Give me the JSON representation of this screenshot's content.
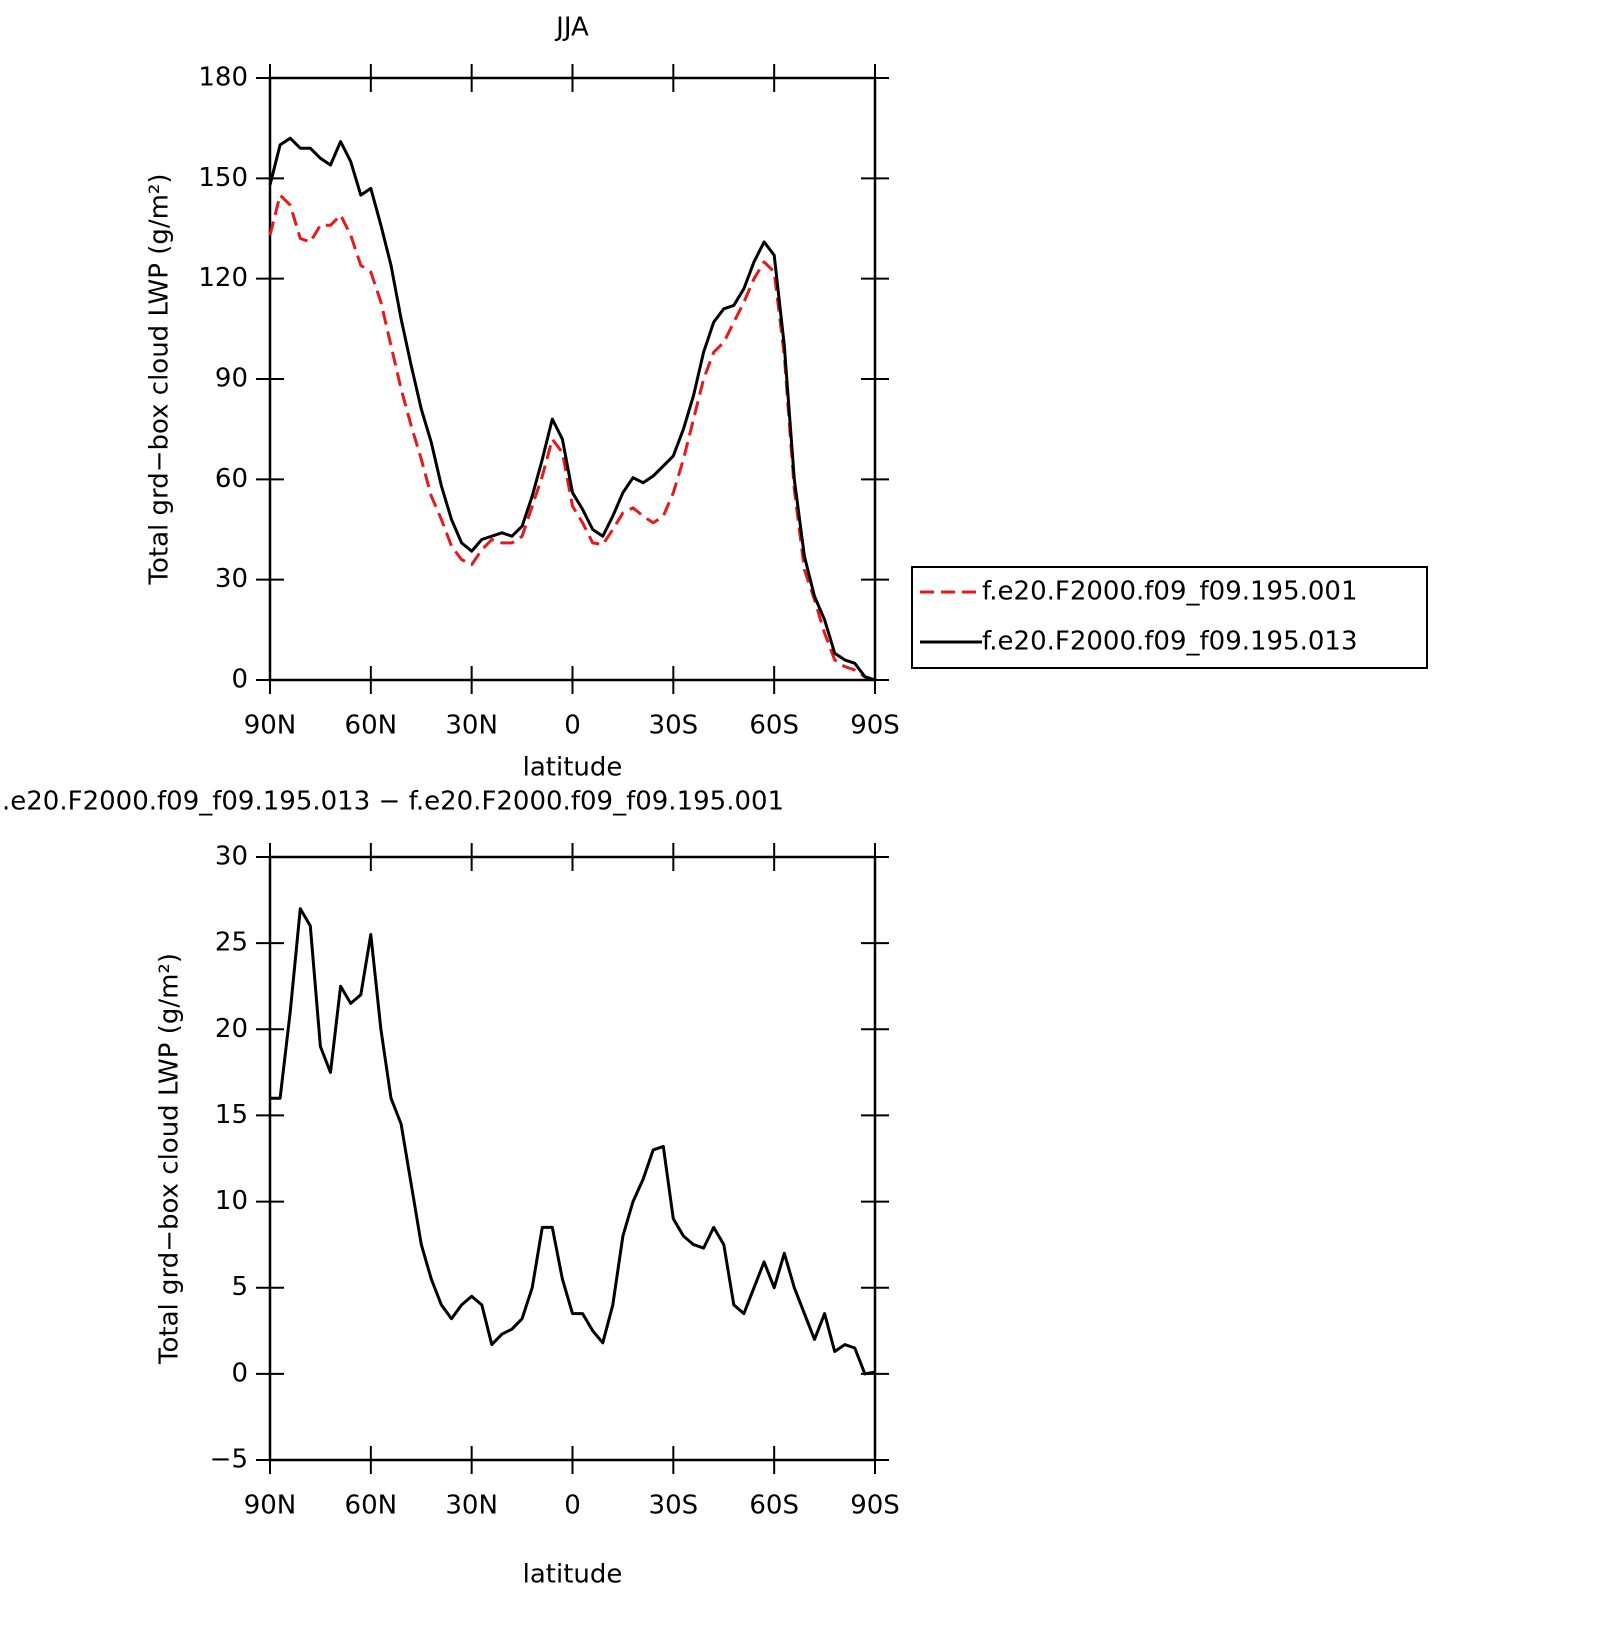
{
  "chart_data": [
    {
      "type": "line",
      "title": "JJA",
      "xlabel": "latitude",
      "ylabel": "Total grd−box cloud LWP (g/m²)",
      "x": [
        90,
        87,
        84,
        81,
        78,
        75,
        72,
        69,
        66,
        63,
        60,
        57,
        54,
        51,
        48,
        45,
        42,
        39,
        36,
        33,
        30,
        27,
        24,
        21,
        18,
        15,
        12,
        9,
        6,
        3,
        0,
        -3,
        -6,
        -9,
        -12,
        -15,
        -18,
        -21,
        -24,
        -27,
        -30,
        -33,
        -36,
        -39,
        -42,
        -45,
        -48,
        -51,
        -54,
        -57,
        -60,
        -63,
        -66,
        -69,
        -72,
        -75,
        -78,
        -81,
        -84,
        -87,
        -90
      ],
      "xlim": [
        90,
        -90
      ],
      "xticks": [
        {
          "value": 90,
          "label": "90N"
        },
        {
          "value": 60,
          "label": "60N"
        },
        {
          "value": 30,
          "label": "30N"
        },
        0,
        {
          "value": -30,
          "label": "30S"
        },
        {
          "value": -60,
          "label": "60S"
        },
        {
          "value": -90,
          "label": "90S"
        }
      ],
      "ylim": [
        0,
        180
      ],
      "yticks": [
        0,
        30,
        60,
        90,
        120,
        150,
        180
      ],
      "legend": "right",
      "series": [
        {
          "name": "f.e20.F2000.f09_f09.195.001",
          "color": "#e8191b",
          "dash": true,
          "values": [
            133,
            145,
            142,
            132,
            131,
            136,
            136,
            139,
            133,
            124,
            122,
            113,
            100,
            87,
            76,
            66,
            55,
            48,
            40,
            36,
            34.5,
            39,
            42,
            41,
            41,
            43,
            52,
            61,
            72,
            68,
            52,
            47,
            41,
            40.5,
            45,
            50,
            51.5,
            49,
            47,
            49,
            56,
            66,
            78,
            90,
            98,
            101,
            107,
            113,
            120,
            125,
            122,
            97,
            57,
            33,
            24,
            14,
            6,
            4,
            3,
            1,
            0
          ]
        },
        {
          "name": "f.e20.F2000.f09_f09.195.013",
          "color": "#000000",
          "dash": false,
          "values": [
            148,
            160,
            162,
            159,
            159,
            156,
            154,
            161,
            155,
            145,
            147,
            136,
            124,
            108,
            94,
            81,
            71,
            58,
            48,
            41,
            38.5,
            42,
            43,
            44,
            43,
            46,
            55,
            66,
            78,
            72,
            56,
            51,
            45,
            43,
            49,
            56,
            60.5,
            59,
            61,
            64,
            67,
            75,
            85,
            98,
            107,
            111,
            112,
            117,
            125,
            131,
            127,
            100,
            60,
            37,
            25,
            18,
            8,
            6,
            5,
            1,
            0
          ]
        }
      ]
    },
    {
      "type": "line",
      "title": ".e20.F2000.f09_f09.195.013 − f.e20.F2000.f09_f09.195.001",
      "xlabel": "latitude",
      "ylabel": "Total grd−box cloud LWP (g/m²)",
      "x": [
        90,
        87,
        84,
        81,
        78,
        75,
        72,
        69,
        66,
        63,
        60,
        57,
        54,
        51,
        48,
        45,
        42,
        39,
        36,
        33,
        30,
        27,
        24,
        21,
        18,
        15,
        12,
        9,
        6,
        3,
        0,
        -3,
        -6,
        -9,
        -12,
        -15,
        -18,
        -21,
        -24,
        -27,
        -30,
        -33,
        -36,
        -39,
        -42,
        -45,
        -48,
        -51,
        -54,
        -57,
        -60,
        -63,
        -66,
        -69,
        -72,
        -75,
        -78,
        -81,
        -84,
        -87,
        -90
      ],
      "xlim": [
        90,
        -90
      ],
      "xticks": [
        {
          "value": 90,
          "label": "90N"
        },
        {
          "value": 60,
          "label": "60N"
        },
        {
          "value": 30,
          "label": "30N"
        },
        0,
        {
          "value": -30,
          "label": "30S"
        },
        {
          "value": -60,
          "label": "60S"
        },
        {
          "value": -90,
          "label": "90S"
        }
      ],
      "ylim": [
        -5,
        30
      ],
      "yticks": [
        {
          "value": -5,
          "label": "−5"
        },
        0,
        5,
        10,
        15,
        20,
        25,
        30
      ],
      "series": [
        {
          "color": "#000000",
          "dash": false,
          "values": [
            16,
            16,
            21,
            27,
            26,
            19,
            17.5,
            22.5,
            21.5,
            22,
            25.5,
            20,
            16,
            14.5,
            11,
            7.5,
            5.5,
            4,
            3.2,
            4,
            4.5,
            4,
            1.7,
            2.3,
            2.6,
            3.2,
            5,
            8.5,
            8.5,
            5.5,
            3.5,
            3.5,
            2.5,
            1.8,
            4,
            8,
            10,
            11.3,
            13,
            13.2,
            9,
            8,
            7.5,
            7.3,
            8.5,
            7.5,
            4,
            3.5,
            5,
            6.5,
            5,
            7,
            5,
            3.5,
            2,
            3.5,
            1.3,
            1.7,
            1.5,
            0,
            0.1
          ]
        }
      ]
    }
  ]
}
